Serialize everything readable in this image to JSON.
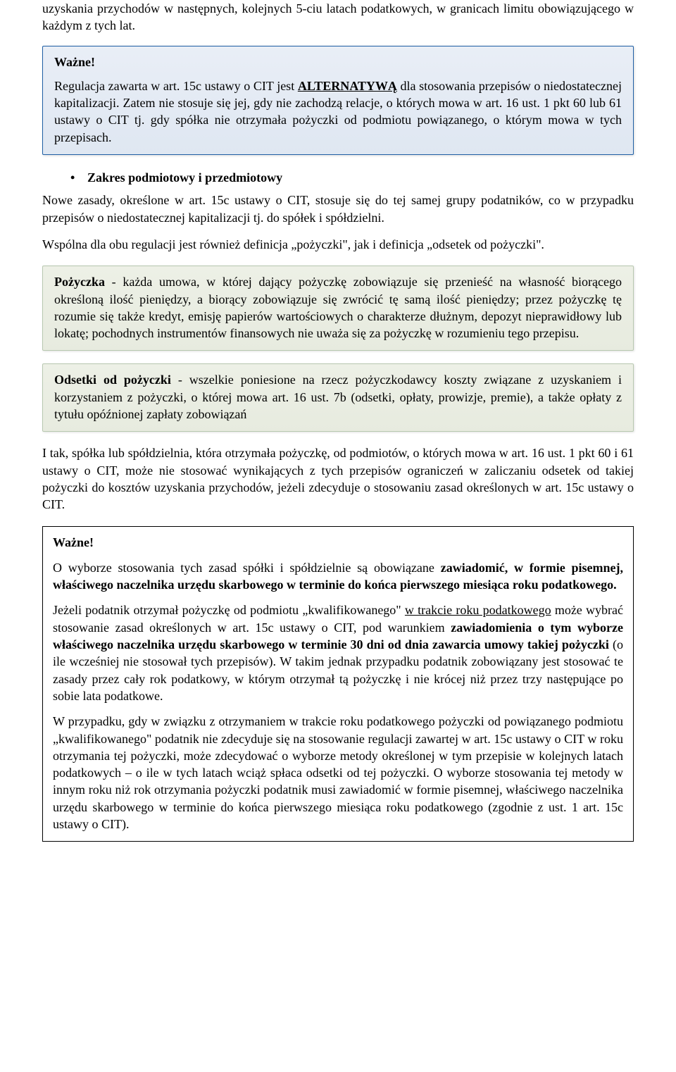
{
  "intro_para": "uzyskania przychodów w następnych, kolejnych 5-ciu latach podatkowych, w granicach limitu obowiązującego w każdym z tych lat.",
  "blue_box": {
    "wazne": "Ważne!",
    "p1_1": "Regulacja zawarta w art. 15c ustawy o CIT jest ",
    "p1_alt": "ALTERNATYWĄ",
    "p1_2": " dla stosowania przepisów o niedostatecznej kapitalizacji. Zatem nie stosuje się jej, gdy nie zachodzą relacje, o których mowa w art. 16 ust. 1 pkt 60 lub 61 ustawy o CIT tj. gdy spółka nie otrzymała pożyczki od podmiotu powiązanego, o którym mowa w tych przepisach."
  },
  "bullet": {
    "text": "Zakres podmiotowy i przedmiotowy"
  },
  "body1": "Nowe zasady, określone w art. 15c ustawy o CIT, stosuje się do tej samej grupy podatników, co w przypadku przepisów o niedostatecznej kapitalizacji tj. do spółek i spółdzielni.",
  "body2": "Wspólna dla obu regulacji jest również definicja „pożyczki\", jak i definicja „odsetek od pożyczki\".",
  "green1": {
    "lead": "Pożyczka",
    "rest": " - każda umowa, w której dający pożyczkę zobowiązuje się przenieść na własność biorącego określoną ilość pieniędzy, a biorący zobowiązuje się zwrócić tę samą ilość pieniędzy; przez pożyczkę tę rozumie się także kredyt, emisję papierów wartościowych o charakterze dłużnym, depozyt nieprawidłowy lub lokatę; pochodnych instrumentów finansowych nie uważa się za pożyczkę w rozumieniu tego przepisu."
  },
  "green2": {
    "lead": "Odsetki od pożyczki",
    "rest": "  - wszelkie poniesione na rzecz pożyczkodawcy koszty związane z uzyskaniem i korzystaniem z pożyczki, o której mowa art. 16 ust. 7b (odsetki, opłaty, prowizje, premie), a także opłaty z tytułu opóźnionej zapłaty zobowiązań"
  },
  "body3": "I tak, spółka lub spółdzielnia, która otrzymała pożyczkę, od podmiotów, o których mowa w art. 16 ust. 1 pkt 60 i 61 ustawy o CIT, może nie stosować wynikających z tych przepisów ograniczeń w zaliczaniu odsetek od takiej pożyczki do kosztów uzyskania przychodów, jeżeli zdecyduje o stosowaniu zasad określonych w art. 15c ustawy o CIT.",
  "plain_box": {
    "wazne": "Ważne!",
    "p1_a": "O wyborze stosowania tych zasad spółki i spółdzielnie są obowiązane ",
    "p1_b": "zawiadomić, w formie pisemnej, właściwego naczelnika urzędu skarbowego w terminie do końca pierwszego miesiąca roku podatkowego.",
    "p2_a": "Jeżeli podatnik otrzymał pożyczkę od podmiotu „kwalifikowanego\" ",
    "p2_u": "w trakcie roku podatkowego",
    "p2_b": " może wybrać stosowanie zasad określonych w art. 15c ustawy o CIT, pod warunkiem ",
    "p2_c": "zawiadomienia o tym wyborze właściwego naczelnika urzędu skarbowego w terminie 30 dni od dnia zawarcia umowy takiej pożyczki",
    "p2_d": " (o ile wcześniej nie stosował tych przepisów). W takim jednak przypadku podatnik zobowiązany jest stosować te zasady przez cały rok podatkowy, w którym otrzymał tą pożyczkę i nie krócej niż przez trzy następujące po sobie lata podatkowe.",
    "p3": "W przypadku, gdy w związku z otrzymaniem w trakcie roku podatkowego pożyczki od powiązanego podmiotu „kwalifikowanego\" podatnik nie zdecyduje się na stosowanie regulacji zawartej w art. 15c ustawy o CIT w roku otrzymania tej pożyczki, może zdecydować o wyborze metody określonej w tym przepisie w kolejnych latach podatkowych – o ile w tych latach wciąż spłaca odsetki od tej pożyczki. O wyborze stosowania tej metody w innym roku niż rok otrzymania pożyczki podatnik musi zawiadomić w formie pisemnej, właściwego naczelnika urzędu skarbowego w terminie do końca pierwszego miesiąca roku podatkowego (zgodnie z ust. 1 art. 15c ustawy o CIT)."
  }
}
